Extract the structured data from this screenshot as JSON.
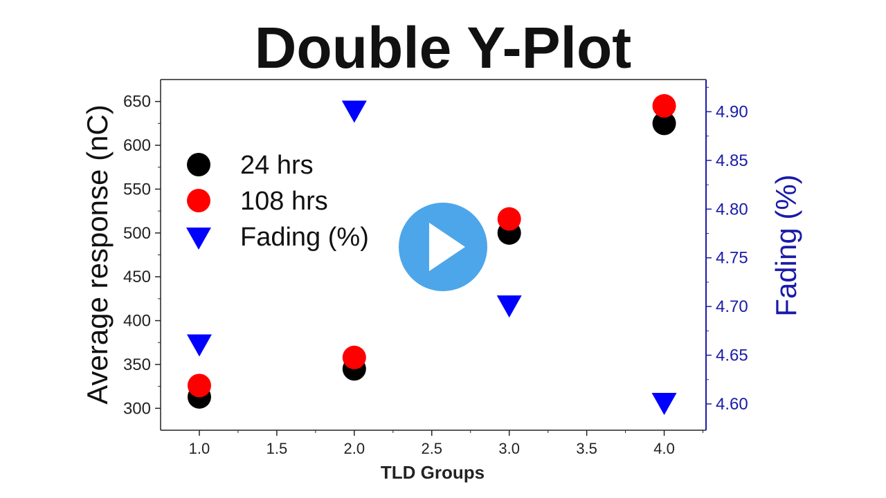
{
  "chart_data": {
    "type": "scatter",
    "title": "Double Y-Plot",
    "xlabel": "TLD Groups",
    "ylabel_left": "Average response (nC)",
    "ylabel_right": "Fading (%)",
    "xlim": [
      0.75,
      4.27
    ],
    "ylim_left": [
      275,
      675
    ],
    "ylim_right": [
      4.573,
      4.933
    ],
    "x_ticks": [
      "1.0",
      "1.5",
      "2.0",
      "2.5",
      "3.0",
      "3.5",
      "4.0"
    ],
    "y_left_ticks": [
      "300",
      "350",
      "400",
      "450",
      "500",
      "550",
      "600",
      "650"
    ],
    "y_right_ticks": [
      "4.60",
      "4.65",
      "4.70",
      "4.75",
      "4.80",
      "4.85",
      "4.90"
    ],
    "legend_position": "upper-left",
    "grid": false,
    "series": [
      {
        "name": "24 hrs",
        "axis": "left",
        "marker": "circle",
        "color": "#000000",
        "x": [
          1,
          2,
          3,
          4
        ],
        "y": [
          313,
          345,
          500,
          625
        ]
      },
      {
        "name": "108 hrs",
        "axis": "left",
        "marker": "circle",
        "color": "#ff0000",
        "x": [
          1,
          2,
          3,
          4
        ],
        "y": [
          326,
          358,
          516,
          645
        ]
      },
      {
        "name": "Fading (%)",
        "axis": "right",
        "marker": "triangle-down",
        "color": "#0000ff",
        "x": [
          1,
          2,
          3,
          4
        ],
        "y": [
          4.66,
          4.9,
          4.7,
          4.6
        ]
      }
    ]
  },
  "overlay": {
    "play_icon": "play-icon",
    "play_color": "#4da6ea"
  }
}
